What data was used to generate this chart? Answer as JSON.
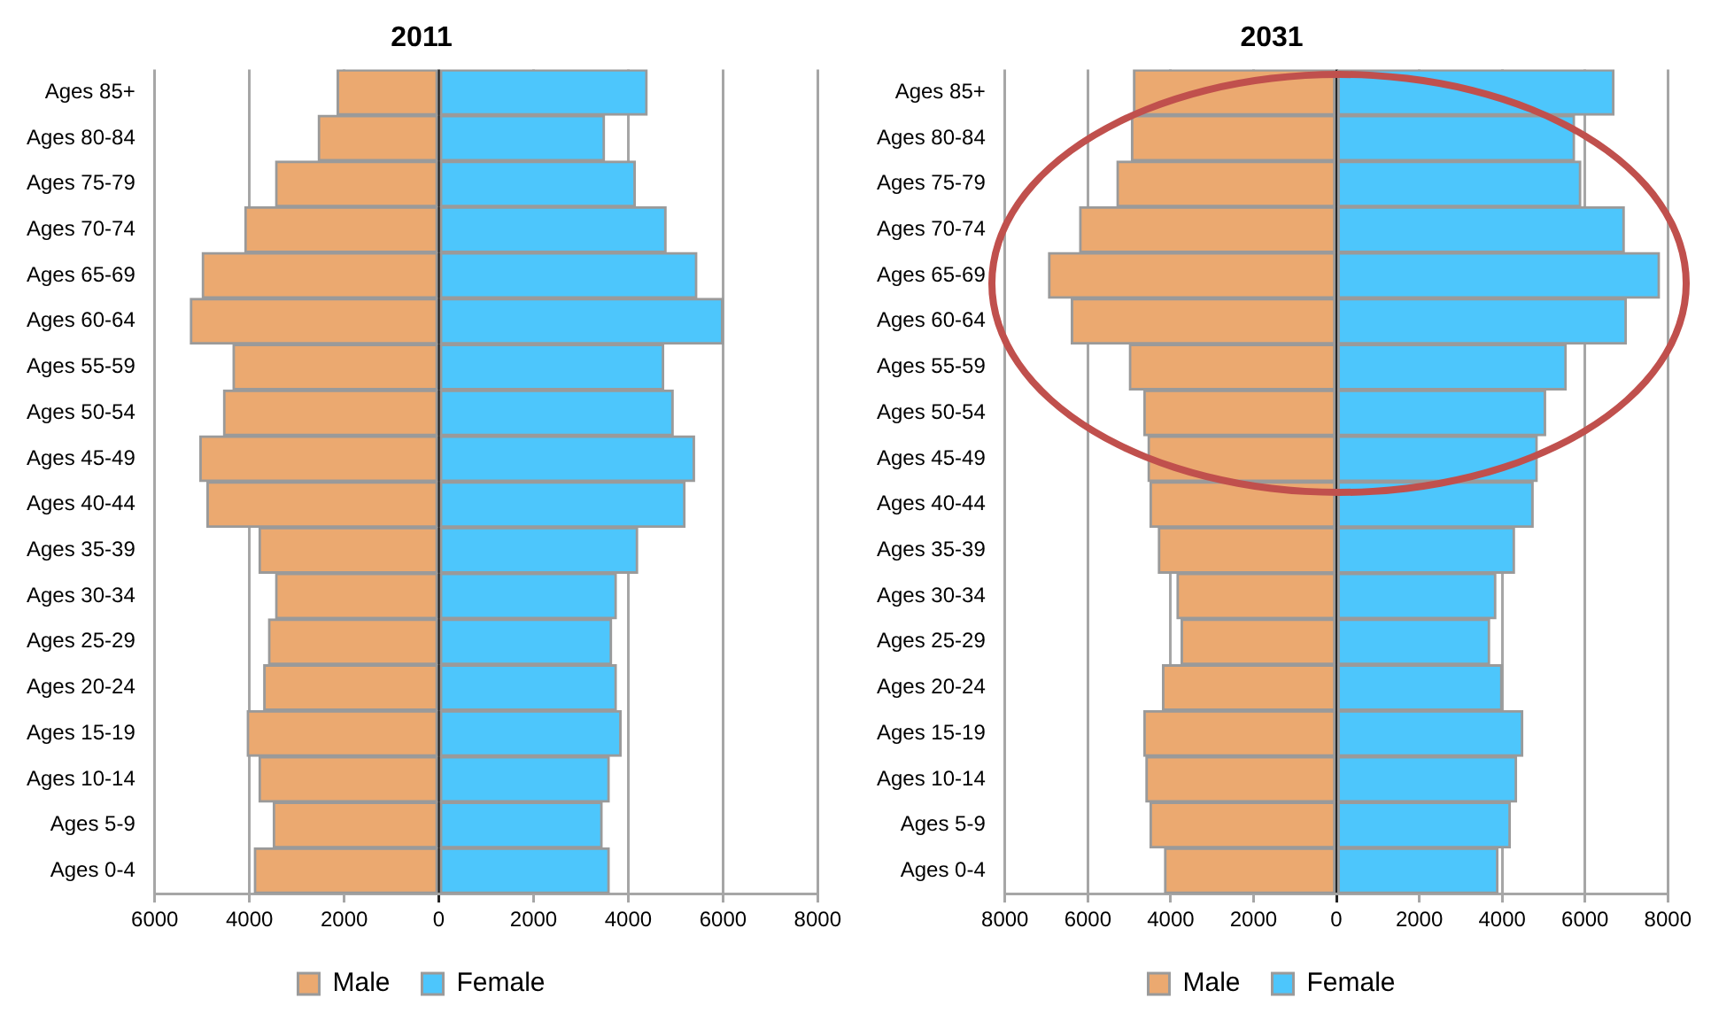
{
  "chart_data": [
    {
      "type": "bar",
      "orientation": "horizontal",
      "stacked": true,
      "title": "2011",
      "categories": [
        "Ages 85+",
        "Ages 80-84",
        "Ages 75-79",
        "Ages 70-74",
        "Ages 65-69",
        "Ages 60-64",
        "Ages 55-59",
        "Ages 50-54",
        "Ages 45-49",
        "Ages 40-44",
        "Ages 35-39",
        "Ages 30-34",
        "Ages 25-29",
        "Ages 20-24",
        "Ages 15-19",
        "Ages 10-14",
        "Ages 5-9",
        "Ages 0-4"
      ],
      "series": [
        {
          "name": "Male",
          "color": "#eba970",
          "values": [
            -2150,
            -2550,
            -3450,
            -4100,
            -5000,
            -5250,
            -4350,
            -4550,
            -5050,
            -4900,
            -3800,
            -3450,
            -3600,
            -3700,
            -4050,
            -3800,
            -3500,
            -3900
          ]
        },
        {
          "name": "Female",
          "color": "#4dc6fc",
          "values": [
            4400,
            3500,
            4150,
            4800,
            5450,
            6000,
            4750,
            4950,
            5400,
            5200,
            4200,
            3750,
            3650,
            3750,
            3850,
            3600,
            3450,
            3600
          ]
        }
      ],
      "xlim": [
        -6000,
        8000
      ],
      "xticks": [
        {
          "value": -6000,
          "label": "6000"
        },
        {
          "value": -4000,
          "label": "4000"
        },
        {
          "value": -2000,
          "label": "2000"
        },
        0,
        2000,
        4000,
        6000,
        8000
      ],
      "grid": "x",
      "legend": "bottom"
    },
    {
      "type": "bar",
      "orientation": "horizontal",
      "stacked": true,
      "title": "2031",
      "categories": [
        "Ages 85+",
        "Ages 80-84",
        "Ages 75-79",
        "Ages 70-74",
        "Ages 65-69",
        "Ages 60-64",
        "Ages 55-59",
        "Ages 50-54",
        "Ages 45-49",
        "Ages 40-44",
        "Ages 35-39",
        "Ages 30-34",
        "Ages 25-29",
        "Ages 20-24",
        "Ages 15-19",
        "Ages 10-14",
        "Ages 5-9",
        "Ages 0-4"
      ],
      "series": [
        {
          "name": "Male",
          "color": "#eba970",
          "values": [
            -4900,
            -4950,
            -5300,
            -6200,
            -6950,
            -6400,
            -5000,
            -4650,
            -4550,
            -4500,
            -4300,
            -3850,
            -3750,
            -4200,
            -4650,
            -4600,
            -4500,
            -4150
          ]
        },
        {
          "name": "Female",
          "color": "#4dc6fc",
          "values": [
            6700,
            5750,
            5900,
            6950,
            7800,
            7000,
            5550,
            5050,
            4850,
            4750,
            4300,
            3850,
            3700,
            4000,
            4500,
            4350,
            4200,
            3900
          ]
        }
      ],
      "xlim": [
        -8000,
        8000
      ],
      "xticks": [
        {
          "value": -8000,
          "label": "8000"
        },
        {
          "value": -6000,
          "label": "6000"
        },
        {
          "value": -4000,
          "label": "4000"
        },
        {
          "value": -2000,
          "label": "2000"
        },
        0,
        2000,
        4000,
        6000,
        8000
      ],
      "grid": "x",
      "legend": "bottom"
    }
  ]
}
